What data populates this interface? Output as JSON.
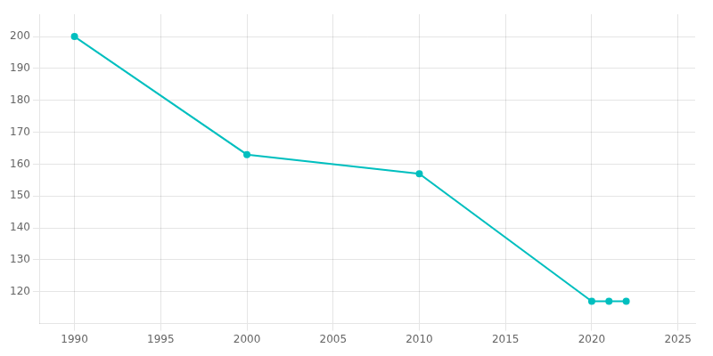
{
  "chart_data": {
    "type": "line",
    "x": [
      1990,
      2000,
      2010,
      2020,
      2021,
      2022
    ],
    "series": [
      {
        "values": [
          200,
          163,
          157,
          117,
          117,
          117
        ],
        "color": "#00BFBF",
        "marker": "circle"
      }
    ],
    "xlim": [
      1988,
      2026
    ],
    "xticks": [
      1990,
      1995,
      2000,
      2005,
      2010,
      2015,
      2020,
      2025
    ],
    "ylim": [
      110,
      207
    ],
    "yticks": [
      120,
      130,
      140,
      150,
      160,
      170,
      180,
      190,
      200
    ],
    "grid": true
  }
}
